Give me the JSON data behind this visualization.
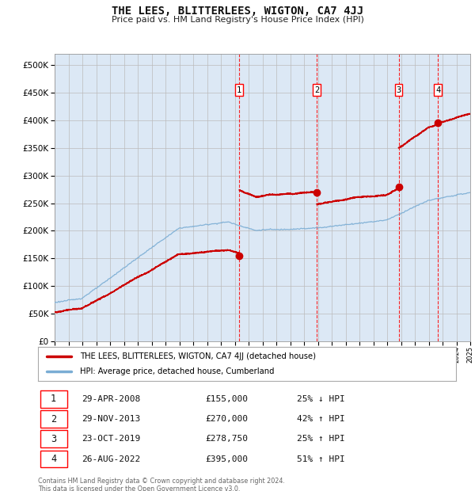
{
  "title": "THE LEES, BLITTERLEES, WIGTON, CA7 4JJ",
  "subtitle": "Price paid vs. HM Land Registry's House Price Index (HPI)",
  "ylim": [
    0,
    520000
  ],
  "yticks": [
    0,
    50000,
    100000,
    150000,
    200000,
    250000,
    300000,
    350000,
    400000,
    450000,
    500000
  ],
  "background_color": "#ffffff",
  "plot_bg_color": "#dce8f5",
  "grid_color": "#bbbbbb",
  "red_line_color": "#cc0000",
  "blue_line_color": "#7aadd4",
  "transactions": [
    {
      "num": 1,
      "date_str": "29-APR-2008",
      "year": 2008.33,
      "price": 155000,
      "pct": "25%",
      "dir": "↓"
    },
    {
      "num": 2,
      "date_str": "29-NOV-2013",
      "year": 2013.92,
      "price": 270000,
      "pct": "42%",
      "dir": "↑"
    },
    {
      "num": 3,
      "date_str": "23-OCT-2019",
      "year": 2019.83,
      "price": 278750,
      "pct": "25%",
      "dir": "↑"
    },
    {
      "num": 4,
      "date_str": "26-AUG-2022",
      "year": 2022.67,
      "price": 395000,
      "pct": "51%",
      "dir": "↑"
    }
  ],
  "legend_label_red": "THE LEES, BLITTERLEES, WIGTON, CA7 4JJ (detached house)",
  "legend_label_blue": "HPI: Average price, detached house, Cumberland",
  "footer": "Contains HM Land Registry data © Crown copyright and database right 2024.\nThis data is licensed under the Open Government Licence v3.0.",
  "xmin": 1995,
  "xmax": 2025
}
